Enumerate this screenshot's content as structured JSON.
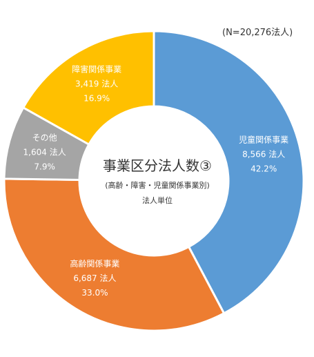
{
  "note": "(N=20,276法人)",
  "chart_data": {
    "type": "donut",
    "title": "事業区分法人数③",
    "subtitle": "(高齢・障害・児童関係事業別)",
    "unit_caption": "法人単位",
    "total_label": "(N=20,276法人)",
    "slices": [
      {
        "name": "児童関係事業",
        "value": 8566,
        "value_label": "8,566 法人",
        "percent_label": "42.2%",
        "color": "#5b9bd5"
      },
      {
        "name": "高齢関係事業",
        "value": 6687,
        "value_label": "6,687 法人",
        "percent_label": "33.0%",
        "color": "#ed7d31"
      },
      {
        "name": "その他",
        "value": 1604,
        "value_label": "1,604 法人",
        "percent_label": "7.9%",
        "color": "#a5a5a5"
      },
      {
        "name": "障害関係事業",
        "value": 3419,
        "value_label": "3,419 法人",
        "percent_label": "16.9%",
        "color": "#ffc000"
      }
    ]
  }
}
